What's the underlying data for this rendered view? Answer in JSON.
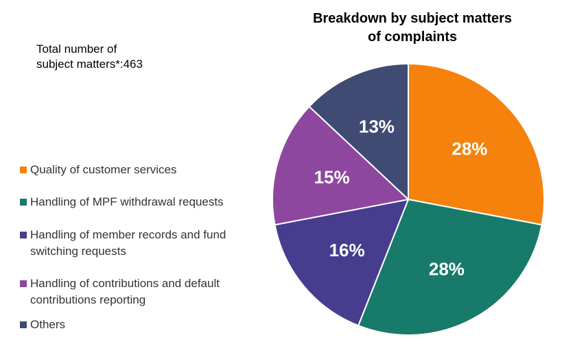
{
  "note": {
    "line1": "Total number of",
    "line2": "subject matters*:463"
  },
  "chart_data": {
    "type": "pie",
    "title_lines": [
      "Breakdown by subject matters",
      "of complaints"
    ],
    "total": 463,
    "slices": [
      {
        "label_lines": [
          "Quality of customer services"
        ],
        "value": 28,
        "display": "28%",
        "color": "#F5820D"
      },
      {
        "label_lines": [
          "Handling of MPF withdrawal requests"
        ],
        "value": 28,
        "display": "28%",
        "color": "#177A6A"
      },
      {
        "label_lines": [
          "Handling of member records and fund",
          "switching requests"
        ],
        "value": 16,
        "display": "16%",
        "color": "#463D8F"
      },
      {
        "label_lines": [
          "Handling of contributions and default",
          "contributions reporting"
        ],
        "value": 15,
        "display": "15%",
        "color": "#8E479E"
      },
      {
        "label_lines": [
          "Others"
        ],
        "value": 13,
        "display": "13%",
        "color": "#404B73"
      }
    ],
    "start_angle": "12 o'clock",
    "direction": "clockwise",
    "legend_position": "left"
  }
}
